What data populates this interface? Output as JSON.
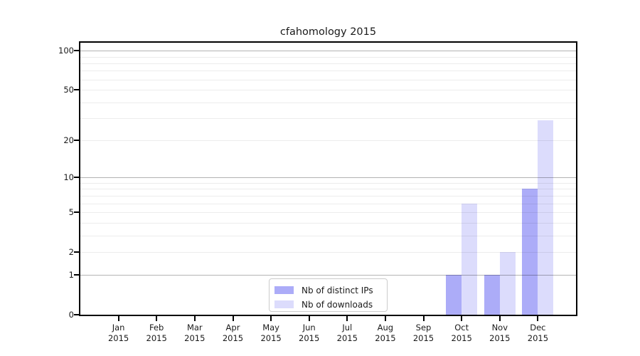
{
  "figure": {
    "background": "#ffffff"
  },
  "chart_data": {
    "type": "bar",
    "title": "cfahomology 2015",
    "categories": [
      "Jan",
      "Feb",
      "Mar",
      "Apr",
      "May",
      "Jun",
      "Jul",
      "Aug",
      "Sep",
      "Oct",
      "Nov",
      "Dec"
    ],
    "category_year": "2015",
    "series": [
      {
        "name": "Nb of distinct IPs",
        "color": "#acacf8",
        "values": [
          0,
          0,
          0,
          0,
          0,
          0,
          0,
          0,
          0,
          1,
          1,
          8
        ]
      },
      {
        "name": "Nb of downloads",
        "color": "#dcdcfc",
        "values": [
          0,
          0,
          0,
          0,
          0,
          0,
          0,
          0,
          0,
          6,
          2,
          29
        ]
      }
    ],
    "y_scale": "log1p",
    "ylim": [
      0,
      115
    ],
    "y_ticks": [
      0,
      1,
      2,
      5,
      10,
      20,
      50,
      100
    ],
    "y_major_gridlines": [
      1,
      10,
      100
    ],
    "y_minor_gridlines": [
      2,
      3,
      4,
      5,
      6,
      7,
      8,
      9,
      20,
      30,
      40,
      50,
      60,
      70,
      80,
      90
    ],
    "grid": "horizontal",
    "legend": {
      "position": "lower center"
    },
    "colors": {
      "grid_major": "#b3b3b3",
      "grid_minor": "#ececec",
      "axis": "#000000",
      "text": "#1a1a1a"
    }
  }
}
